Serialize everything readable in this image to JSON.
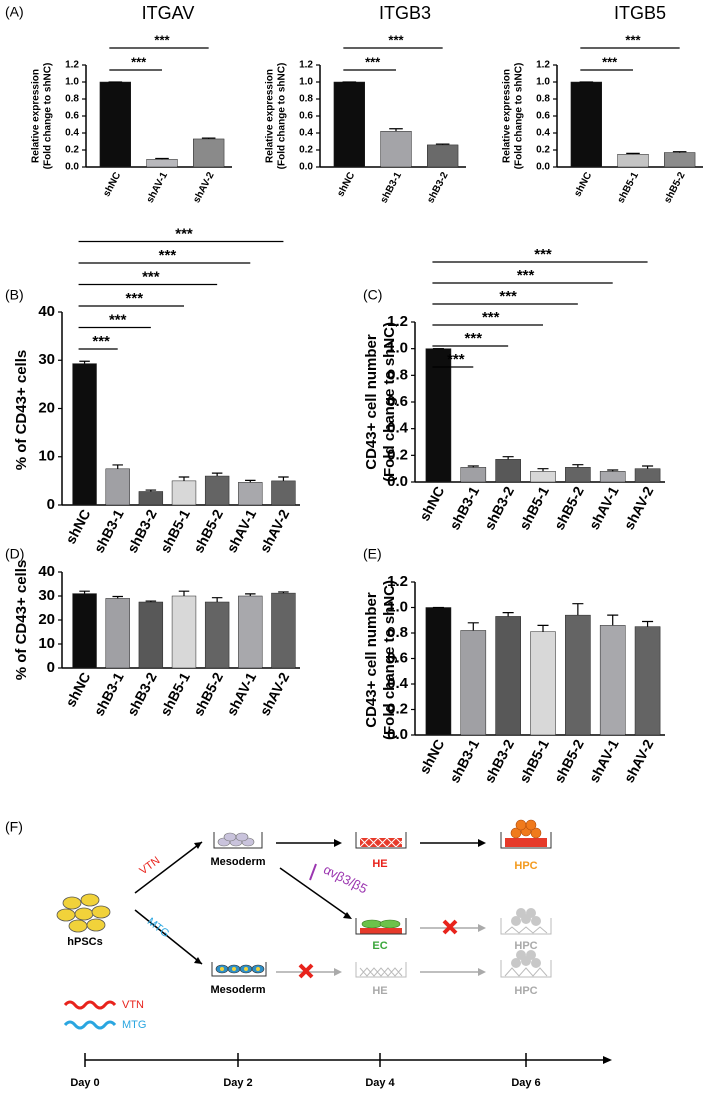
{
  "chart_data": [
    {
      "type": "bar",
      "panel": "(A)",
      "title": "ITGAV",
      "ylabel": [
        "Relative expression",
        "(Fold change to shNC)"
      ],
      "categories": [
        "shNC",
        "shAV-1",
        "shAV-2"
      ],
      "values": [
        1.0,
        0.09,
        0.33
      ],
      "errors": [
        0,
        0.01,
        0.01
      ],
      "colors": [
        "#0d0d0d",
        "#b8b8bc",
        "#8a8a8a"
      ],
      "ylim": [
        0,
        1.2
      ],
      "yticks": [
        {
          "value": 0,
          "label": "0.0"
        },
        {
          "value": 0.2,
          "label": "0.2"
        },
        {
          "value": 0.4,
          "label": "0.4"
        },
        {
          "value": 0.6,
          "label": "0.6"
        },
        {
          "value": 0.8,
          "label": "0.8"
        },
        {
          "value": 1,
          "label": "1.0"
        },
        {
          "value": 1.2,
          "label": "1.2"
        }
      ],
      "significance": [
        {
          "between": [
            "shNC",
            "shAV-1"
          ],
          "label": "***"
        },
        {
          "between": [
            "shNC",
            "shAV-2"
          ],
          "label": "***"
        }
      ]
    },
    {
      "type": "bar",
      "title": "ITGB3",
      "ylabel": [
        "Relative expression",
        "(Fold change to shNC)"
      ],
      "categories": [
        "shNC",
        "shB3-1",
        "shB3-2"
      ],
      "values": [
        1.0,
        0.42,
        0.26
      ],
      "errors": [
        0,
        0.03,
        0.01
      ],
      "colors": [
        "#0d0d0d",
        "#a4a4a8",
        "#6a6a6a"
      ],
      "ylim": [
        0,
        1.2
      ],
      "yticks": [
        {
          "value": 0,
          "label": "0.0"
        },
        {
          "value": 0.2,
          "label": "0.2"
        },
        {
          "value": 0.4,
          "label": "0.4"
        },
        {
          "value": 0.6,
          "label": "0.6"
        },
        {
          "value": 0.8,
          "label": "0.8"
        },
        {
          "value": 1,
          "label": "1.0"
        },
        {
          "value": 1.2,
          "label": "1.2"
        }
      ],
      "significance": [
        {
          "between": [
            "shNC",
            "shB3-1"
          ],
          "label": "***"
        },
        {
          "between": [
            "shNC",
            "shB3-2"
          ],
          "label": "***"
        }
      ]
    },
    {
      "type": "bar",
      "title": "ITGB5",
      "ylabel": [
        "Relative expression",
        "(Fold change to shNC)"
      ],
      "categories": [
        "shNC",
        "shB5-1",
        "shB5-2"
      ],
      "values": [
        1.0,
        0.15,
        0.17
      ],
      "errors": [
        0,
        0.01,
        0.01
      ],
      "colors": [
        "#0d0d0d",
        "#c4c4c4",
        "#8c8c8c"
      ],
      "ylim": [
        0,
        1.2
      ],
      "yticks": [
        {
          "value": 0,
          "label": "0.0"
        },
        {
          "value": 0.2,
          "label": "0.2"
        },
        {
          "value": 0.4,
          "label": "0.4"
        },
        {
          "value": 0.6,
          "label": "0.6"
        },
        {
          "value": 0.8,
          "label": "0.8"
        },
        {
          "value": 1,
          "label": "1.0"
        },
        {
          "value": 1.2,
          "label": "1.2"
        }
      ],
      "significance": [
        {
          "between": [
            "shNC",
            "shB5-1"
          ],
          "label": "***"
        },
        {
          "between": [
            "shNC",
            "shB5-2"
          ],
          "label": "***"
        }
      ]
    },
    {
      "type": "bar",
      "panel": "(B)",
      "ylabel": "% of CD43+ cells",
      "categories": [
        "shNC",
        "shB3-1",
        "shB3-2",
        "shB5-1",
        "shB5-2",
        "shAV-1",
        "shAV-2"
      ],
      "values": [
        29.3,
        7.5,
        2.8,
        5.0,
        6.0,
        4.7,
        5.0
      ],
      "errors": [
        0.5,
        0.8,
        0.3,
        0.8,
        0.6,
        0.4,
        0.8
      ],
      "colors": [
        "#0d0d0d",
        "#a0a0a4",
        "#585858",
        "#d8d8d8",
        "#646464",
        "#a8a8ac",
        "#646464"
      ],
      "ylim": [
        0,
        40
      ],
      "yticks": [
        0,
        10,
        20,
        30,
        40
      ],
      "significance": [
        {
          "between": [
            "shNC",
            "shB3-1"
          ],
          "label": "***"
        },
        {
          "between": [
            "shNC",
            "shB3-2"
          ],
          "label": "***"
        },
        {
          "between": [
            "shNC",
            "shB5-1"
          ],
          "label": "***"
        },
        {
          "between": [
            "shNC",
            "shB5-2"
          ],
          "label": "***"
        },
        {
          "between": [
            "shNC",
            "shAV-1"
          ],
          "label": "***"
        },
        {
          "between": [
            "shNC",
            "shAV-2"
          ],
          "label": "***"
        }
      ]
    },
    {
      "type": "bar",
      "panel": "(C)",
      "ylabel": [
        "CD43+ cell number",
        "(Fold change to shNC)"
      ],
      "categories": [
        "shNC",
        "shB3-1",
        "shB3-2",
        "shB5-1",
        "shB5-2",
        "shAV-1",
        "shAV-2"
      ],
      "values": [
        1.0,
        0.11,
        0.17,
        0.08,
        0.11,
        0.08,
        0.1
      ],
      "errors": [
        0,
        0.01,
        0.02,
        0.02,
        0.02,
        0.01,
        0.02
      ],
      "colors": [
        "#0d0d0d",
        "#a0a0a4",
        "#585858",
        "#d8d8d8",
        "#646464",
        "#a8a8ac",
        "#646464"
      ],
      "ylim": [
        0,
        1.2
      ],
      "yticks": [
        {
          "value": 0,
          "label": "0.0"
        },
        {
          "value": 0.2,
          "label": "0.2"
        },
        {
          "value": 0.4,
          "label": "0.4"
        },
        {
          "value": 0.6,
          "label": "0.6"
        },
        {
          "value": 0.8,
          "label": "0.8"
        },
        {
          "value": 1,
          "label": "1.0"
        },
        {
          "value": 1.2,
          "label": "1.2"
        }
      ],
      "significance": [
        {
          "between": [
            "shNC",
            "shB3-1"
          ],
          "label": "***"
        },
        {
          "between": [
            "shNC",
            "shB3-2"
          ],
          "label": "***"
        },
        {
          "between": [
            "shNC",
            "shB5-1"
          ],
          "label": "***"
        },
        {
          "between": [
            "shNC",
            "shB5-2"
          ],
          "label": "***"
        },
        {
          "between": [
            "shNC",
            "shAV-1"
          ],
          "label": "***"
        },
        {
          "between": [
            "shNC",
            "shAV-2"
          ],
          "label": "***"
        }
      ]
    },
    {
      "type": "bar",
      "panel": "(D)",
      "ylabel": "% of CD43+ cells",
      "categories": [
        "shNC",
        "shB3-1",
        "shB3-2",
        "shB5-1",
        "shB5-2",
        "shAV-1",
        "shAV-2"
      ],
      "values": [
        31.0,
        29.0,
        27.5,
        30.0,
        27.5,
        30.0,
        31.2
      ],
      "errors": [
        1.0,
        0.8,
        0.4,
        2.0,
        1.8,
        0.9,
        0.5
      ],
      "colors": [
        "#0d0d0d",
        "#a0a0a4",
        "#585858",
        "#d8d8d8",
        "#646464",
        "#a8a8ac",
        "#646464"
      ],
      "ylim": [
        0,
        40
      ],
      "yticks": [
        0,
        10,
        20,
        30,
        40
      ]
    },
    {
      "type": "bar",
      "panel": "(E)",
      "ylabel": [
        "CD43+ cell number",
        "(Fold change to shNC)"
      ],
      "categories": [
        "shNC",
        "shB3-1",
        "shB3-2",
        "shB5-1",
        "shB5-2",
        "shAV-1",
        "shAV-2"
      ],
      "values": [
        1.0,
        0.82,
        0.93,
        0.81,
        0.94,
        0.86,
        0.85
      ],
      "errors": [
        0,
        0.06,
        0.03,
        0.05,
        0.09,
        0.08,
        0.04
      ],
      "colors": [
        "#0d0d0d",
        "#a0a0a4",
        "#585858",
        "#d8d8d8",
        "#646464",
        "#a8a8ac",
        "#646464"
      ],
      "ylim": [
        0,
        1.2
      ],
      "yticks": [
        {
          "value": 0,
          "label": "0.0"
        },
        {
          "value": 0.2,
          "label": "0.2"
        },
        {
          "value": 0.4,
          "label": "0.4"
        },
        {
          "value": 0.6,
          "label": "0.6"
        },
        {
          "value": 0.8,
          "label": "0.8"
        },
        {
          "value": 1,
          "label": "1.0"
        },
        {
          "value": 1.2,
          "label": "1.2"
        }
      ]
    }
  ],
  "diagram": {
    "panel": "(F)",
    "start": "hPSCs",
    "arrow_labels": [
      "VTN",
      "MTG"
    ],
    "top_row": [
      "Mesoderm",
      "HE",
      "HPC"
    ],
    "inhibitor": "αvβ3/β5",
    "middle_row": [
      "EC",
      "HPC"
    ],
    "bottom_row": [
      "Mesoderm",
      "HE",
      "HPC"
    ],
    "legend": [
      "VTN",
      "MTG"
    ],
    "timeline": [
      "Day 0",
      "Day 2",
      "Day 4",
      "Day 6"
    ]
  }
}
